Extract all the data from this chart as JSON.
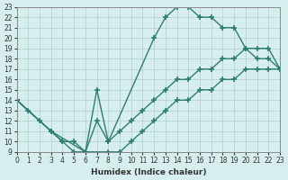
{
  "xlabel": "Humidex (Indice chaleur)",
  "background_color": "#d6eeed",
  "grid_color": "#b0cfcc",
  "line_color": "#2e7d72",
  "xlim": [
    0,
    23
  ],
  "ylim": [
    9,
    23
  ],
  "xticks": [
    0,
    1,
    2,
    3,
    4,
    5,
    6,
    7,
    8,
    9,
    10,
    11,
    12,
    13,
    14,
    15,
    16,
    17,
    18,
    19,
    20,
    21,
    22,
    23
  ],
  "yticks": [
    9,
    10,
    11,
    12,
    13,
    14,
    15,
    16,
    17,
    18,
    19,
    20,
    21,
    22,
    23
  ],
  "curve1_x": [
    0,
    1,
    2,
    3,
    4,
    5,
    6,
    7,
    8,
    12,
    13,
    14,
    15,
    16,
    17,
    18,
    19,
    20,
    21,
    22,
    23
  ],
  "curve1_y": [
    14,
    13,
    12,
    11,
    10,
    9,
    9,
    12,
    10,
    20,
    22,
    23,
    23,
    22,
    22,
    21,
    21,
    19,
    18,
    18,
    17
  ],
  "curve2_x": [
    0,
    3,
    4,
    5,
    6,
    7,
    8,
    9,
    10,
    11,
    12,
    13,
    14,
    15,
    16,
    17,
    18,
    19,
    20,
    21,
    22,
    23
  ],
  "curve2_y": [
    14,
    11,
    10,
    10,
    9,
    15,
    10,
    11,
    12,
    13,
    14,
    15,
    16,
    16,
    17,
    17,
    18,
    18,
    19,
    19,
    19,
    17
  ],
  "curve3_x": [
    0,
    3,
    6,
    8,
    9,
    10,
    11,
    12,
    13,
    14,
    15,
    16,
    17,
    18,
    19,
    20,
    21,
    22,
    23
  ],
  "curve3_y": [
    14,
    11,
    9,
    9,
    9,
    10,
    11,
    12,
    13,
    14,
    14,
    15,
    15,
    16,
    16,
    17,
    17,
    17,
    17
  ],
  "figsize": [
    3.2,
    2.0
  ],
  "dpi": 100
}
